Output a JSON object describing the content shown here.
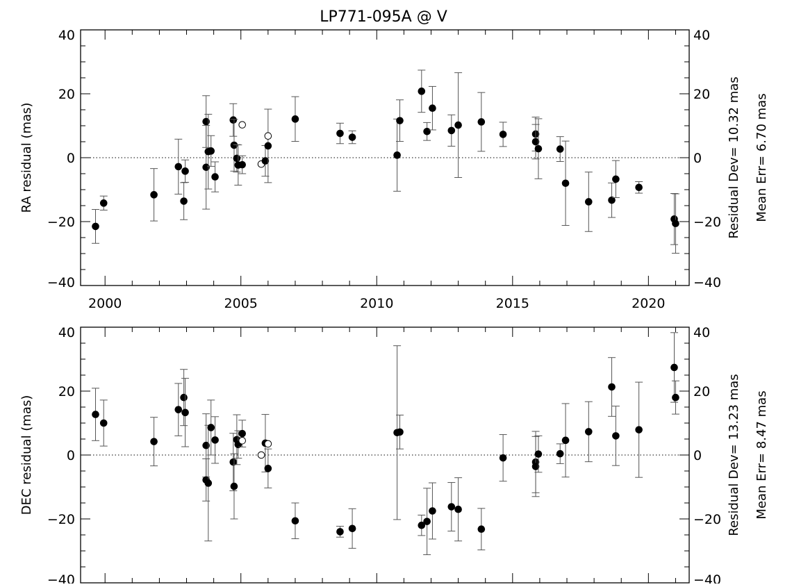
{
  "title": "LP771-095A @ V",
  "chart_data": [
    {
      "type": "scatter",
      "name": "ra-panel",
      "ylabel": "RA residual (mas)",
      "xlim": [
        1999.1,
        2021.5
      ],
      "ylim": [
        -40,
        40
      ],
      "xticks": [
        2000,
        2005,
        2010,
        2015,
        2020
      ],
      "xtick_labels": [
        "2000",
        "2005",
        "2010",
        "2015",
        "2020"
      ],
      "yticks": [
        -40,
        -20,
        0,
        20,
        40
      ],
      "ytick_labels": [
        "−40",
        "−20",
        "0",
        "20",
        "40"
      ],
      "zero_line": true,
      "right_notes": [
        "Residual Dev=  10.32 mas",
        "Mean Err=  6.70 mas"
      ],
      "points": [
        {
          "x": 1999.65,
          "y": -21.5,
          "err": 5.3,
          "filled": true
        },
        {
          "x": 1999.95,
          "y": -14.2,
          "err": 2.2,
          "filled": true
        },
        {
          "x": 2001.8,
          "y": -11.6,
          "err": 8.2,
          "filled": true
        },
        {
          "x": 2002.7,
          "y": -2.8,
          "err": 8.6,
          "filled": true
        },
        {
          "x": 2002.9,
          "y": -13.6,
          "err": 5.8,
          "filled": true
        },
        {
          "x": 2002.95,
          "y": -4.2,
          "err": 3.5,
          "filled": true
        },
        {
          "x": 2003.72,
          "y": 11.3,
          "err": 8.1,
          "filled": true
        },
        {
          "x": 2003.72,
          "y": -3.0,
          "err": 13.1,
          "filled": true
        },
        {
          "x": 2003.8,
          "y": 1.9,
          "err": 11.7,
          "filled": true
        },
        {
          "x": 2003.9,
          "y": 2.1,
          "err": 4.8,
          "filled": true
        },
        {
          "x": 2004.05,
          "y": -6.0,
          "err": 4.7,
          "filled": true
        },
        {
          "x": 2004.72,
          "y": 11.8,
          "err": 5.1,
          "filled": true
        },
        {
          "x": 2004.75,
          "y": 3.9,
          "err": 8.1,
          "filled": true
        },
        {
          "x": 2004.85,
          "y": -0.2,
          "err": 4.3,
          "filled": true
        },
        {
          "x": 2004.9,
          "y": -2.3,
          "err": 6.3,
          "filled": true
        },
        {
          "x": 2005.05,
          "y": -2.2,
          "err": 2.8,
          "filled": true
        },
        {
          "x": 2005.05,
          "y": 10.3,
          "err": 0,
          "filled": false
        },
        {
          "x": 2005.75,
          "y": -2.0,
          "err": 0,
          "filled": false
        },
        {
          "x": 2005.9,
          "y": -1.0,
          "err": 4.8,
          "filled": true
        },
        {
          "x": 2006.0,
          "y": 3.7,
          "err": 11.5,
          "filled": true
        },
        {
          "x": 2006.0,
          "y": 6.8,
          "err": 0,
          "filled": false
        },
        {
          "x": 2007.0,
          "y": 12.1,
          "err": 7.0,
          "filled": true
        },
        {
          "x": 2008.65,
          "y": 7.6,
          "err": 3.2,
          "filled": true
        },
        {
          "x": 2009.1,
          "y": 6.4,
          "err": 2.0,
          "filled": true
        },
        {
          "x": 2010.75,
          "y": 0.8,
          "err": 11.3,
          "filled": true
        },
        {
          "x": 2010.85,
          "y": 11.6,
          "err": 6.5,
          "filled": true
        },
        {
          "x": 2011.65,
          "y": 20.8,
          "err": 6.6,
          "filled": true
        },
        {
          "x": 2011.85,
          "y": 8.2,
          "err": 2.8,
          "filled": true
        },
        {
          "x": 2012.05,
          "y": 15.5,
          "err": 6.8,
          "filled": true
        },
        {
          "x": 2012.75,
          "y": 8.5,
          "err": 4.9,
          "filled": true
        },
        {
          "x": 2013.0,
          "y": 10.2,
          "err": 16.4,
          "filled": true
        },
        {
          "x": 2013.85,
          "y": 11.2,
          "err": 9.2,
          "filled": true
        },
        {
          "x": 2014.65,
          "y": 7.3,
          "err": 3.8,
          "filled": true
        },
        {
          "x": 2015.85,
          "y": 7.4,
          "err": 5.3,
          "filled": true
        },
        {
          "x": 2015.85,
          "y": 5.0,
          "err": 5.4,
          "filled": true
        },
        {
          "x": 2015.95,
          "y": 2.8,
          "err": 9.4,
          "filled": true
        },
        {
          "x": 2016.75,
          "y": 2.7,
          "err": 3.9,
          "filled": true
        },
        {
          "x": 2016.95,
          "y": -8.0,
          "err": 13.2,
          "filled": true
        },
        {
          "x": 2017.8,
          "y": -13.8,
          "err": 9.3,
          "filled": true
        },
        {
          "x": 2018.65,
          "y": -13.3,
          "err": 5.4,
          "filled": true
        },
        {
          "x": 2018.8,
          "y": -6.7,
          "err": 5.8,
          "filled": true
        },
        {
          "x": 2019.65,
          "y": -9.3,
          "err": 1.8,
          "filled": true
        },
        {
          "x": 2020.95,
          "y": -19.2,
          "err": 8.0,
          "filled": true
        },
        {
          "x": 2021.0,
          "y": -20.6,
          "err": 9.3,
          "filled": true
        }
      ]
    },
    {
      "type": "scatter",
      "name": "dec-panel",
      "ylabel": "DEC residual (mas)",
      "xlim": [
        1999.1,
        2021.5
      ],
      "ylim": [
        -40,
        40
      ],
      "xticks": [
        2000,
        2005,
        2010,
        2015,
        2020
      ],
      "xtick_labels": [],
      "yticks": [
        -40,
        -20,
        0,
        20,
        40
      ],
      "ytick_labels": [
        "−40",
        "−20",
        "0",
        "20",
        "40"
      ],
      "zero_line": true,
      "right_notes": [
        "Residual Dev=  13.23 mas",
        "Mean Err=  8.47 mas"
      ],
      "points": [
        {
          "x": 1999.65,
          "y": 12.7,
          "err": 8.2,
          "filled": true
        },
        {
          "x": 1999.95,
          "y": 10.0,
          "err": 7.2,
          "filled": true
        },
        {
          "x": 2001.8,
          "y": 4.2,
          "err": 7.6,
          "filled": true
        },
        {
          "x": 2002.7,
          "y": 14.2,
          "err": 8.2,
          "filled": true
        },
        {
          "x": 2002.9,
          "y": 18.0,
          "err": 8.8,
          "filled": true
        },
        {
          "x": 2002.95,
          "y": 13.3,
          "err": 10.7,
          "filled": true
        },
        {
          "x": 2003.72,
          "y": 3.0,
          "err": 9.9,
          "filled": true
        },
        {
          "x": 2003.72,
          "y": -7.8,
          "err": 6.6,
          "filled": true
        },
        {
          "x": 2003.8,
          "y": -8.8,
          "err": 18.1,
          "filled": true
        },
        {
          "x": 2003.9,
          "y": 8.6,
          "err": 8.6,
          "filled": true
        },
        {
          "x": 2004.05,
          "y": 4.7,
          "err": 7.3,
          "filled": true
        },
        {
          "x": 2004.72,
          "y": -2.2,
          "err": 9.0,
          "filled": true
        },
        {
          "x": 2004.75,
          "y": -9.8,
          "err": 10.2,
          "filled": true
        },
        {
          "x": 2004.85,
          "y": 4.8,
          "err": 7.8,
          "filled": true
        },
        {
          "x": 2004.9,
          "y": 3.3,
          "err": 4.3,
          "filled": true
        },
        {
          "x": 2005.05,
          "y": 6.7,
          "err": 4.2,
          "filled": true
        },
        {
          "x": 2005.05,
          "y": 4.5,
          "err": 0,
          "filled": false
        },
        {
          "x": 2005.75,
          "y": 0.0,
          "err": 0,
          "filled": false
        },
        {
          "x": 2005.9,
          "y": 3.7,
          "err": 9.0,
          "filled": true
        },
        {
          "x": 2006.0,
          "y": -4.2,
          "err": 6.1,
          "filled": true
        },
        {
          "x": 2006.0,
          "y": 3.5,
          "err": 0,
          "filled": false
        },
        {
          "x": 2007.0,
          "y": -20.6,
          "err": 5.6,
          "filled": true
        },
        {
          "x": 2008.65,
          "y": -24.0,
          "err": 1.7,
          "filled": true
        },
        {
          "x": 2009.1,
          "y": -23.0,
          "err": 6.2,
          "filled": true
        },
        {
          "x": 2010.75,
          "y": 7.0,
          "err": 27.2,
          "filled": true
        },
        {
          "x": 2010.85,
          "y": 7.2,
          "err": 5.3,
          "filled": true
        },
        {
          "x": 2011.65,
          "y": -22.0,
          "err": 3.2,
          "filled": true
        },
        {
          "x": 2011.85,
          "y": -20.8,
          "err": 10.4,
          "filled": true
        },
        {
          "x": 2012.05,
          "y": -17.5,
          "err": 8.8,
          "filled": true
        },
        {
          "x": 2012.75,
          "y": -16.2,
          "err": 7.6,
          "filled": true
        },
        {
          "x": 2013.0,
          "y": -17.0,
          "err": 9.9,
          "filled": true
        },
        {
          "x": 2013.85,
          "y": -23.2,
          "err": 6.5,
          "filled": true
        },
        {
          "x": 2014.65,
          "y": -0.9,
          "err": 7.3,
          "filled": true
        },
        {
          "x": 2015.85,
          "y": -2.2,
          "err": 9.6,
          "filled": true
        },
        {
          "x": 2015.85,
          "y": -3.6,
          "err": 9.4,
          "filled": true
        },
        {
          "x": 2015.95,
          "y": 0.3,
          "err": 5.7,
          "filled": true
        },
        {
          "x": 2016.75,
          "y": 0.4,
          "err": 3.1,
          "filled": true
        },
        {
          "x": 2016.95,
          "y": 4.6,
          "err": 11.5,
          "filled": true
        },
        {
          "x": 2017.8,
          "y": 7.3,
          "err": 9.4,
          "filled": true
        },
        {
          "x": 2018.65,
          "y": 21.3,
          "err": 9.2,
          "filled": true
        },
        {
          "x": 2018.8,
          "y": 6.0,
          "err": 9.3,
          "filled": true
        },
        {
          "x": 2019.65,
          "y": 7.9,
          "err": 14.9,
          "filled": true
        },
        {
          "x": 2020.95,
          "y": 27.4,
          "err": 10.9,
          "filled": true
        },
        {
          "x": 2021.0,
          "y": 18.0,
          "err": 5.2,
          "filled": true
        }
      ]
    }
  ]
}
